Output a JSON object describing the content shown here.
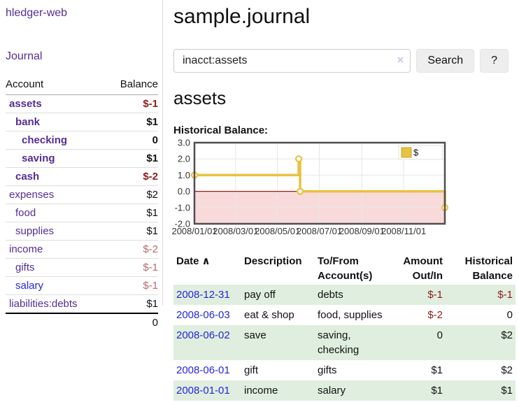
{
  "app": {
    "title": "hledger-web",
    "journal_link": "Journal"
  },
  "colors": {
    "link_purple": "#552d93",
    "link_blue": "#2626d9",
    "negative_strong": "#8f1d1d",
    "negative_soft": "#b96a6a",
    "series_gold": "#e8c240",
    "negative_region_pink": "#f9dada",
    "row_stripe_green": "#dfeede"
  },
  "sidebar": {
    "headers": {
      "account": "Account",
      "balance": "Balance"
    },
    "rows": [
      {
        "account": "assets",
        "balance": "$-1",
        "indent": 1,
        "bold": true,
        "balance_style": "neg-strong"
      },
      {
        "account": "bank",
        "balance": "$1",
        "indent": 2,
        "bold": true,
        "balance_style": "normal"
      },
      {
        "account": "checking",
        "balance": "0",
        "indent": 3,
        "bold": true,
        "balance_style": "normal"
      },
      {
        "account": "saving",
        "balance": "$1",
        "indent": 3,
        "bold": true,
        "balance_style": "normal"
      },
      {
        "account": "cash",
        "balance": "$-2",
        "indent": 2,
        "bold": true,
        "balance_style": "neg-strong"
      },
      {
        "account": "expenses",
        "balance": "$2",
        "indent": 1,
        "bold": false,
        "balance_style": "normal"
      },
      {
        "account": "food",
        "balance": "$1",
        "indent": 2,
        "bold": false,
        "balance_style": "normal"
      },
      {
        "account": "supplies",
        "balance": "$1",
        "indent": 2,
        "bold": false,
        "balance_style": "normal"
      },
      {
        "account": "income",
        "balance": "$-2",
        "indent": 1,
        "bold": false,
        "balance_style": "neg-soft"
      },
      {
        "account": "gifts",
        "balance": "$-1",
        "indent": 2,
        "bold": false,
        "balance_style": "neg-soft"
      },
      {
        "account": "salary",
        "balance": "$-1",
        "indent": 2,
        "bold": false,
        "balance_style": "neg-soft",
        "link_style": "blue"
      },
      {
        "account": "liabilities:debts",
        "balance": "$1",
        "indent": 1,
        "bold": false,
        "balance_style": "normal"
      }
    ],
    "total": "0"
  },
  "header": {
    "title": "sample.journal"
  },
  "search": {
    "value": "inacct:assets",
    "clear_icon": "×",
    "button_label": "Search",
    "help_label": "?"
  },
  "register": {
    "account_title": "assets",
    "chart_label": "Historical Balance:",
    "table": {
      "headers": {
        "date": "Date",
        "sort_icon": "∧",
        "description": "Description",
        "accounts": "To/From Account(s)",
        "amount": "Amount Out/In",
        "balance": "Historical Balance"
      },
      "rows": [
        {
          "date": "2008-12-31",
          "description": "pay off",
          "accounts": "debts",
          "amount": "$-1",
          "amount_negative": true,
          "balance": "$-1",
          "balance_negative": true
        },
        {
          "date": "2008-06-03",
          "description": "eat & shop",
          "accounts": "food, supplies",
          "amount": "$-2",
          "amount_negative": true,
          "balance": "0",
          "balance_negative": false
        },
        {
          "date": "2008-06-02",
          "description": "save",
          "accounts": "saving, checking",
          "amount": "0",
          "amount_negative": false,
          "balance": "$2",
          "balance_negative": false
        },
        {
          "date": "2008-06-01",
          "description": "gift",
          "accounts": "gifts",
          "amount": "$1",
          "amount_negative": false,
          "balance": "$2",
          "balance_negative": false
        },
        {
          "date": "2008-01-01",
          "description": "income",
          "accounts": "salary",
          "amount": "$1",
          "amount_negative": false,
          "balance": "$1",
          "balance_negative": false
        }
      ]
    }
  },
  "chart_data": {
    "type": "line",
    "title": "Historical Balance",
    "series": [
      {
        "name": "$",
        "style": "step",
        "color": "#e8c240",
        "points": [
          [
            "2008-01-01",
            1
          ],
          [
            "2008-06-01",
            2
          ],
          [
            "2008-06-03",
            0
          ],
          [
            "2008-12-31",
            -1
          ]
        ]
      }
    ],
    "x_ticks": [
      {
        "date": "2008-01-01",
        "label": "2008/01/01"
      },
      {
        "date": "2008-03-01",
        "label": "2008/03/01"
      },
      {
        "date": "2008-05-01",
        "label": "2008/05/01"
      },
      {
        "date": "2008-07-01",
        "label": "2008/07/01"
      },
      {
        "date": "2008-09-01",
        "label": "2008/09/01"
      },
      {
        "date": "2008-11-01",
        "label": "2008/11/01"
      }
    ],
    "y_ticks": [
      "3.0",
      "2.0",
      "1.0",
      "0.0",
      "-1.0",
      "-2.0"
    ],
    "xlim": [
      "2008-01-01",
      "2008-12-31"
    ],
    "ylim": [
      -2,
      3
    ],
    "grid": true,
    "legend": {
      "position": "top-right",
      "label": "$"
    },
    "negative_region_color": "#f9dada",
    "zero_line_color": "#9b1c1c"
  }
}
